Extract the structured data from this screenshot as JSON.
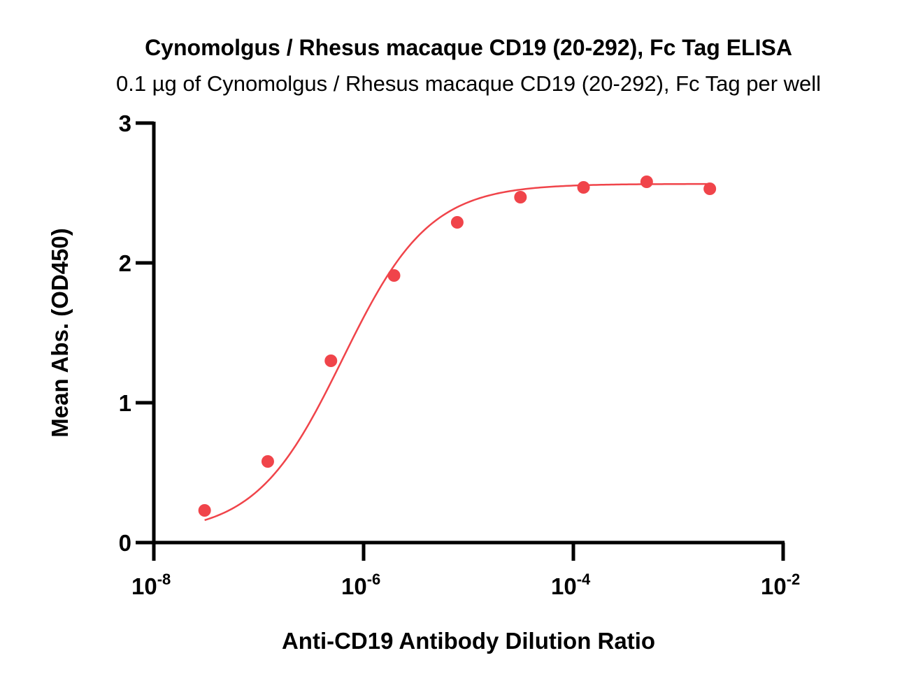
{
  "chart_data": {
    "type": "scatter",
    "title": "Cynomolgus / Rhesus macaque CD19 (20-292), Fc Tag ELISA",
    "subtitle": "0.1 µg of Cynomolgus / Rhesus macaque CD19 (20-292), Fc Tag per well",
    "xlabel": "Anti-CD19 Antibody Dilution Ratio",
    "ylabel": "Mean Abs. (OD450)",
    "x_scale": "log",
    "xlim": [
      1e-08,
      0.01
    ],
    "ylim": [
      0,
      3
    ],
    "x_ticks": [
      {
        "base": "10",
        "exp": "-8",
        "value": 1e-08
      },
      {
        "base": "10",
        "exp": "-6",
        "value": 1e-06
      },
      {
        "base": "10",
        "exp": "-4",
        "value": 0.0001
      },
      {
        "base": "10",
        "exp": "-2",
        "value": 0.01
      }
    ],
    "y_ticks": [
      {
        "label": "0",
        "value": 0
      },
      {
        "label": "1",
        "value": 1
      },
      {
        "label": "2",
        "value": 2
      },
      {
        "label": "3",
        "value": 3
      }
    ],
    "grid": false,
    "legend": "none",
    "series": [
      {
        "color": "#f0444a",
        "points": [
          {
            "x": 3.05e-08,
            "y": 0.23
          },
          {
            "x": 1.22e-07,
            "y": 0.58
          },
          {
            "x": 4.88e-07,
            "y": 1.3
          },
          {
            "x": 1.95e-06,
            "y": 1.91
          },
          {
            "x": 7.81e-06,
            "y": 2.29
          },
          {
            "x": 3.13e-05,
            "y": 2.47
          },
          {
            "x": 0.000125,
            "y": 2.54
          },
          {
            "x": 0.0005,
            "y": 2.58
          },
          {
            "x": 0.002,
            "y": 2.53
          }
        ],
        "fit": {
          "model": "4PL",
          "bottom": 0.06,
          "top": 2.565,
          "ec50": 6.3e-07,
          "hill": 1.05
        }
      }
    ]
  }
}
